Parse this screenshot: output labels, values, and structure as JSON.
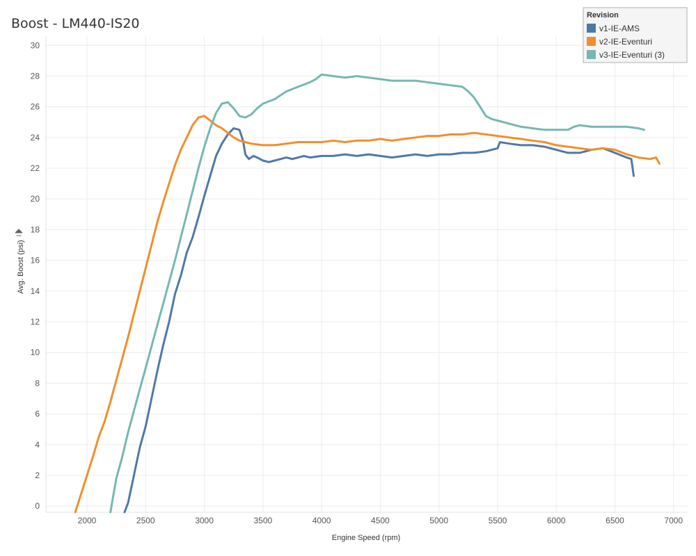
{
  "chart_data": {
    "type": "line",
    "title": "Boost - LM440-IS20",
    "xlabel": "Engine Speed (rpm)",
    "ylabel": "Avg. Boost (psi)",
    "xlim": [
      1650,
      7120
    ],
    "ylim": [
      -0.4,
      30.6
    ],
    "x_ticks": [
      2000,
      2500,
      3000,
      3500,
      4000,
      4500,
      5000,
      5500,
      6000,
      6500,
      7000
    ],
    "y_ticks": [
      0,
      2,
      4,
      6,
      8,
      10,
      12,
      14,
      16,
      18,
      20,
      22,
      24,
      26,
      28,
      30
    ],
    "grid": true,
    "legend": {
      "title": "Revision",
      "position": "top-right"
    },
    "series": [
      {
        "name": "v1-IE-AMS",
        "color": "#4e79a7",
        "points": [
          [
            2320,
            -0.4
          ],
          [
            2350,
            0.2
          ],
          [
            2400,
            2.0
          ],
          [
            2450,
            3.8
          ],
          [
            2500,
            5.2
          ],
          [
            2550,
            7.0
          ],
          [
            2600,
            8.8
          ],
          [
            2650,
            10.5
          ],
          [
            2700,
            12.0
          ],
          [
            2750,
            13.8
          ],
          [
            2800,
            15.0
          ],
          [
            2850,
            16.5
          ],
          [
            2900,
            17.5
          ],
          [
            2950,
            18.8
          ],
          [
            3000,
            20.2
          ],
          [
            3050,
            21.5
          ],
          [
            3100,
            22.8
          ],
          [
            3150,
            23.6
          ],
          [
            3200,
            24.2
          ],
          [
            3250,
            24.6
          ],
          [
            3300,
            24.5
          ],
          [
            3330,
            23.8
          ],
          [
            3350,
            22.9
          ],
          [
            3380,
            22.6
          ],
          [
            3420,
            22.8
          ],
          [
            3450,
            22.7
          ],
          [
            3500,
            22.5
          ],
          [
            3550,
            22.4
          ],
          [
            3600,
            22.5
          ],
          [
            3650,
            22.6
          ],
          [
            3700,
            22.7
          ],
          [
            3750,
            22.6
          ],
          [
            3800,
            22.7
          ],
          [
            3850,
            22.8
          ],
          [
            3900,
            22.7
          ],
          [
            4000,
            22.8
          ],
          [
            4100,
            22.8
          ],
          [
            4200,
            22.9
          ],
          [
            4300,
            22.8
          ],
          [
            4400,
            22.9
          ],
          [
            4500,
            22.8
          ],
          [
            4600,
            22.7
          ],
          [
            4700,
            22.8
          ],
          [
            4800,
            22.9
          ],
          [
            4900,
            22.8
          ],
          [
            5000,
            22.9
          ],
          [
            5100,
            22.9
          ],
          [
            5200,
            23.0
          ],
          [
            5300,
            23.0
          ],
          [
            5400,
            23.1
          ],
          [
            5500,
            23.3
          ],
          [
            5520,
            23.7
          ],
          [
            5600,
            23.6
          ],
          [
            5700,
            23.5
          ],
          [
            5800,
            23.5
          ],
          [
            5900,
            23.4
          ],
          [
            6000,
            23.2
          ],
          [
            6100,
            23.0
          ],
          [
            6200,
            23.0
          ],
          [
            6300,
            23.2
          ],
          [
            6400,
            23.3
          ],
          [
            6500,
            23.0
          ],
          [
            6600,
            22.7
          ],
          [
            6640,
            22.6
          ],
          [
            6660,
            21.5
          ]
        ]
      },
      {
        "name": "v2-IE-Eventuri",
        "color": "#f28e2b",
        "points": [
          [
            1900,
            -0.4
          ],
          [
            1950,
            0.8
          ],
          [
            2000,
            2.0
          ],
          [
            2050,
            3.2
          ],
          [
            2100,
            4.5
          ],
          [
            2150,
            5.5
          ],
          [
            2200,
            6.8
          ],
          [
            2250,
            8.2
          ],
          [
            2300,
            9.6
          ],
          [
            2350,
            11.0
          ],
          [
            2400,
            12.5
          ],
          [
            2450,
            14.0
          ],
          [
            2500,
            15.5
          ],
          [
            2550,
            17.0
          ],
          [
            2600,
            18.5
          ],
          [
            2650,
            19.8
          ],
          [
            2700,
            21.0
          ],
          [
            2750,
            22.2
          ],
          [
            2800,
            23.2
          ],
          [
            2850,
            24.0
          ],
          [
            2900,
            24.8
          ],
          [
            2950,
            25.3
          ],
          [
            3000,
            25.4
          ],
          [
            3050,
            25.1
          ],
          [
            3100,
            24.8
          ],
          [
            3150,
            24.6
          ],
          [
            3200,
            24.3
          ],
          [
            3250,
            24.0
          ],
          [
            3300,
            23.8
          ],
          [
            3350,
            23.7
          ],
          [
            3400,
            23.6
          ],
          [
            3500,
            23.5
          ],
          [
            3600,
            23.5
          ],
          [
            3700,
            23.6
          ],
          [
            3800,
            23.7
          ],
          [
            3900,
            23.7
          ],
          [
            4000,
            23.7
          ],
          [
            4100,
            23.8
          ],
          [
            4200,
            23.7
          ],
          [
            4300,
            23.8
          ],
          [
            4400,
            23.8
          ],
          [
            4500,
            23.9
          ],
          [
            4600,
            23.8
          ],
          [
            4700,
            23.9
          ],
          [
            4800,
            24.0
          ],
          [
            4900,
            24.1
          ],
          [
            5000,
            24.1
          ],
          [
            5100,
            24.2
          ],
          [
            5200,
            24.2
          ],
          [
            5300,
            24.3
          ],
          [
            5400,
            24.2
          ],
          [
            5500,
            24.1
          ],
          [
            5600,
            24.0
          ],
          [
            5700,
            23.9
          ],
          [
            5800,
            23.8
          ],
          [
            5900,
            23.7
          ],
          [
            6000,
            23.5
          ],
          [
            6100,
            23.4
          ],
          [
            6200,
            23.3
          ],
          [
            6300,
            23.2
          ],
          [
            6400,
            23.3
          ],
          [
            6500,
            23.2
          ],
          [
            6600,
            22.9
          ],
          [
            6700,
            22.7
          ],
          [
            6800,
            22.6
          ],
          [
            6850,
            22.7
          ],
          [
            6880,
            22.3
          ]
        ]
      },
      {
        "name": "v3-IE-Eventuri (3)",
        "color": "#76b7b2",
        "points": [
          [
            2200,
            -0.4
          ],
          [
            2220,
            0.5
          ],
          [
            2250,
            1.8
          ],
          [
            2300,
            3.2
          ],
          [
            2350,
            4.8
          ],
          [
            2400,
            6.2
          ],
          [
            2450,
            7.6
          ],
          [
            2500,
            9.0
          ],
          [
            2550,
            10.4
          ],
          [
            2600,
            11.8
          ],
          [
            2650,
            13.2
          ],
          [
            2700,
            14.6
          ],
          [
            2750,
            16.0
          ],
          [
            2800,
            17.5
          ],
          [
            2850,
            19.0
          ],
          [
            2900,
            20.5
          ],
          [
            2950,
            22.0
          ],
          [
            3000,
            23.4
          ],
          [
            3050,
            24.6
          ],
          [
            3100,
            25.6
          ],
          [
            3150,
            26.2
          ],
          [
            3200,
            26.3
          ],
          [
            3250,
            25.9
          ],
          [
            3300,
            25.4
          ],
          [
            3350,
            25.3
          ],
          [
            3400,
            25.5
          ],
          [
            3450,
            25.9
          ],
          [
            3500,
            26.2
          ],
          [
            3600,
            26.5
          ],
          [
            3700,
            27.0
          ],
          [
            3800,
            27.3
          ],
          [
            3900,
            27.6
          ],
          [
            3950,
            27.8
          ],
          [
            4000,
            28.1
          ],
          [
            4100,
            28.0
          ],
          [
            4200,
            27.9
          ],
          [
            4300,
            28.0
          ],
          [
            4400,
            27.9
          ],
          [
            4500,
            27.8
          ],
          [
            4600,
            27.7
          ],
          [
            4700,
            27.7
          ],
          [
            4800,
            27.7
          ],
          [
            4900,
            27.6
          ],
          [
            5000,
            27.5
          ],
          [
            5100,
            27.4
          ],
          [
            5200,
            27.3
          ],
          [
            5250,
            27.0
          ],
          [
            5300,
            26.6
          ],
          [
            5350,
            26.0
          ],
          [
            5400,
            25.4
          ],
          [
            5450,
            25.2
          ],
          [
            5500,
            25.1
          ],
          [
            5550,
            25.0
          ],
          [
            5600,
            24.9
          ],
          [
            5650,
            24.8
          ],
          [
            5700,
            24.7
          ],
          [
            5800,
            24.6
          ],
          [
            5900,
            24.5
          ],
          [
            6000,
            24.5
          ],
          [
            6100,
            24.5
          ],
          [
            6150,
            24.7
          ],
          [
            6200,
            24.8
          ],
          [
            6300,
            24.7
          ],
          [
            6400,
            24.7
          ],
          [
            6500,
            24.7
          ],
          [
            6600,
            24.7
          ],
          [
            6700,
            24.6
          ],
          [
            6750,
            24.5
          ]
        ]
      }
    ]
  }
}
